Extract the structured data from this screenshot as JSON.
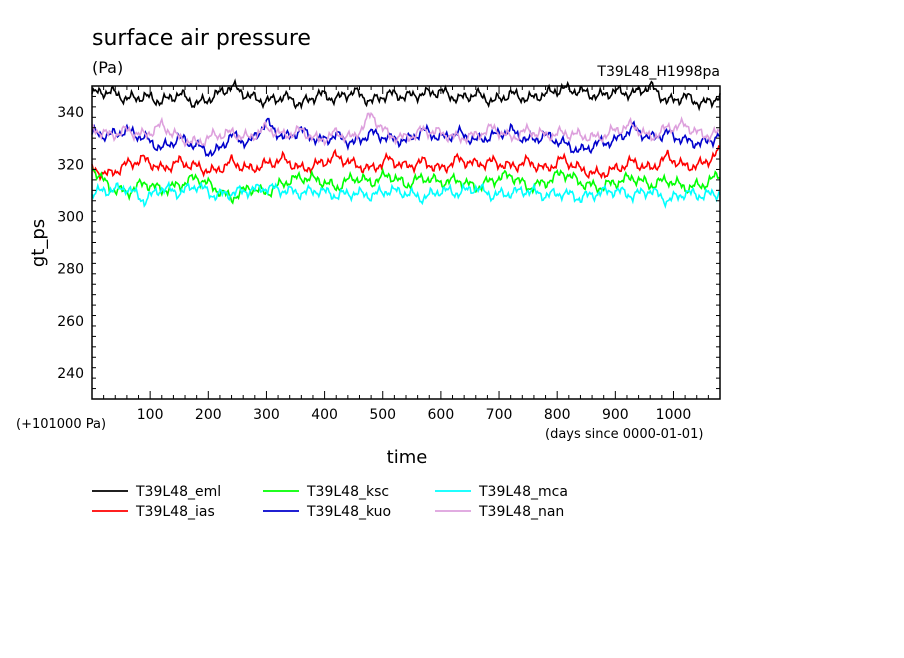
{
  "chart_data": {
    "type": "line",
    "title": "surface air pressure",
    "units": "(Pa)",
    "tag": "T39L48_H1998pa",
    "xlabel": "time",
    "x_units": "(days since 0000-01-01)",
    "ylabel": "gt_ps",
    "y_offset_label": "(+101000 Pa)",
    "xlim": [
      0,
      1080
    ],
    "ylim": [
      230,
      350
    ],
    "x_ticks": [
      100,
      200,
      300,
      400,
      500,
      600,
      700,
      800,
      900,
      1000
    ],
    "y_ticks": [
      240,
      260,
      280,
      300,
      320,
      340
    ],
    "grid": false,
    "legend_position": "bottom",
    "x": [
      0,
      30,
      60,
      90,
      120,
      150,
      180,
      210,
      240,
      270,
      300,
      330,
      360,
      390,
      420,
      450,
      480,
      510,
      540,
      570,
      600,
      630,
      660,
      690,
      720,
      750,
      780,
      810,
      840,
      870,
      900,
      930,
      960,
      990,
      1020,
      1050,
      1080
    ],
    "series": [
      {
        "name": "T39L48_eml",
        "color": "#000000",
        "values": [
          347,
          348,
          345,
          346,
          344,
          347,
          343,
          346,
          350,
          346,
          344,
          346,
          343,
          347,
          345,
          348,
          344,
          347,
          346,
          347,
          348,
          345,
          347,
          344,
          347,
          345,
          347,
          349,
          348,
          346,
          348,
          347,
          350,
          344,
          346,
          343,
          346
        ]
      },
      {
        "name": "T39L48_ias",
        "color": "#ff0000",
        "values": [
          318,
          316,
          320,
          322,
          318,
          321,
          319,
          317,
          321,
          318,
          320,
          322,
          318,
          320,
          323,
          320,
          318,
          322,
          319,
          321,
          318,
          322,
          320,
          321,
          319,
          321,
          318,
          322,
          318,
          316,
          318,
          321,
          318,
          323,
          319,
          320,
          325
        ]
      },
      {
        "name": "T39L48_ksc",
        "color": "#00ff00",
        "values": [
          319,
          311,
          309,
          313,
          310,
          312,
          315,
          311,
          307,
          311,
          309,
          313,
          315,
          314,
          311,
          315,
          313,
          316,
          312,
          315,
          313,
          314,
          311,
          314,
          316,
          311,
          313,
          317,
          313,
          311,
          313,
          315,
          312,
          314,
          311,
          312,
          316
        ]
      },
      {
        "name": "T39L48_mca",
        "color": "#00ffff",
        "values": [
          309,
          310,
          311,
          306,
          311,
          309,
          312,
          308,
          309,
          310,
          311,
          310,
          309,
          310,
          308,
          309,
          308,
          310,
          309,
          307,
          310,
          309,
          311,
          308,
          309,
          310,
          308,
          309,
          307,
          309,
          310,
          308,
          310,
          306,
          309,
          308,
          309
        ]
      },
      {
        "name": "T39L48_kuo",
        "color": "#0000cc",
        "values": [
          332,
          331,
          333,
          330,
          326,
          330,
          327,
          324,
          331,
          328,
          336,
          330,
          333,
          329,
          331,
          328,
          332,
          330,
          329,
          333,
          330,
          332,
          329,
          331,
          333,
          329,
          331,
          328,
          325,
          328,
          329,
          334,
          330,
          332,
          329,
          328,
          331
        ]
      },
      {
        "name": "T39L48_nan",
        "color": "#dda0dd",
        "values": [
          334,
          331,
          333,
          331,
          335,
          330,
          328,
          331,
          332,
          330,
          334,
          331,
          333,
          329,
          332,
          330,
          339,
          331,
          330,
          333,
          332,
          330,
          331,
          334,
          330,
          333,
          331,
          332,
          331,
          330,
          333,
          335,
          330,
          334,
          335,
          331,
          332
        ]
      }
    ]
  }
}
